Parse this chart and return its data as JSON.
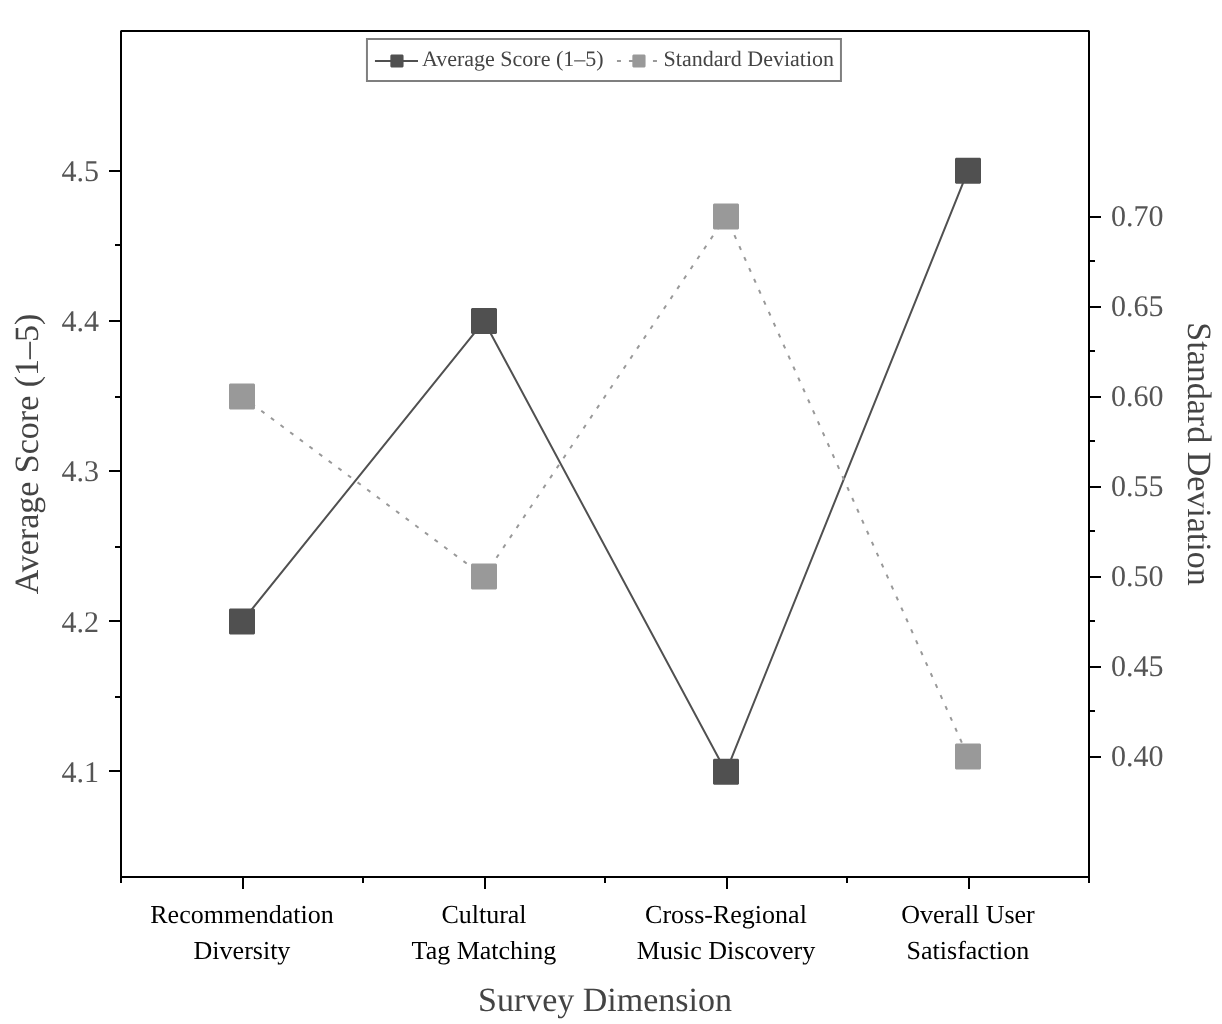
{
  "chart_data": {
    "type": "line",
    "xlabel": "Survey Dimension",
    "ylabel": "Average Score (1–5)",
    "y2label": "Standard Deviation",
    "categories": [
      "Recommendation Diversity",
      "Cultural Tag Matching",
      "Cross-Regional Music Discovery",
      "Overall User Satisfaction"
    ],
    "series": [
      {
        "name": "Average Score (1–5)",
        "color": "#505050",
        "values": [
          4.2,
          4.4,
          4.1,
          4.5
        ],
        "line_style": "solid"
      },
      {
        "name": "Standard Deviation",
        "color": "#999999",
        "values": [
          0.6,
          0.5,
          0.7,
          0.4
        ],
        "axis": "y2",
        "line_style": "dotted"
      }
    ],
    "ylim": [
      4.03,
      4.593
    ],
    "yticks": [
      4.1,
      4.2,
      4.3,
      4.4,
      4.5
    ],
    "y2lim": [
      0.333,
      0.803
    ],
    "y2ticks": [
      {
        "value": 0.4,
        "label": "0.40"
      },
      {
        "value": 0.45,
        "label": "0.45"
      },
      {
        "value": 0.5,
        "label": "0.50"
      },
      {
        "value": 0.55,
        "label": "0.55"
      },
      {
        "value": 0.6,
        "label": "0.60"
      },
      {
        "value": 0.65,
        "label": "0.65"
      },
      {
        "value": 0.7,
        "label": "0.70"
      }
    ],
    "marker": "square",
    "grid": false,
    "legend": "top"
  }
}
